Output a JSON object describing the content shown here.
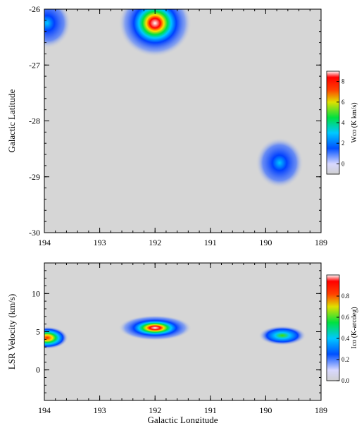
{
  "chart_data": [
    {
      "type": "heatmap",
      "title": "",
      "xlabel": "",
      "ylabel": "Galactic Latitude",
      "x_ticks": [
        "194",
        "193",
        "192",
        "191",
        "190",
        "189"
      ],
      "y_ticks": [
        "-26",
        "-27",
        "-28",
        "-29",
        "-30"
      ],
      "xlim": [
        194,
        189
      ],
      "ylim": [
        -30,
        -26
      ],
      "colorbar": {
        "label": "Wco (K km/s)",
        "ticks": [
          "0",
          "2",
          "4",
          "6",
          "8"
        ],
        "range": [
          -1,
          9
        ]
      },
      "features": [
        {
          "l": 193.95,
          "b": -26.25,
          "peak": 3.0
        },
        {
          "l": 192.0,
          "b": -26.25,
          "peak": 7.5
        },
        {
          "l": 189.75,
          "b": -28.75,
          "peak": 3.0
        }
      ]
    },
    {
      "type": "heatmap",
      "title": "",
      "xlabel": "Galactic Longitude",
      "ylabel": "LSR Velocity (km/s)",
      "x_ticks": [
        "194",
        "193",
        "192",
        "191",
        "190",
        "189"
      ],
      "y_ticks": [
        "10",
        "5",
        "0"
      ],
      "xlim": [
        194,
        189
      ],
      "ylim": [
        -4,
        14
      ],
      "colorbar": {
        "label": "Ico (K-arcdeg)",
        "ticks": [
          "0.0",
          "0.2",
          "0.4",
          "0.6",
          "0.8"
        ],
        "range": [
          0,
          1.0
        ]
      },
      "features": [
        {
          "l": 193.95,
          "v": 4.2,
          "peak": 0.75
        },
        {
          "l": 192.0,
          "v": 5.5,
          "peak": 0.95
        },
        {
          "l": 189.7,
          "v": 4.5,
          "peak": 0.45
        }
      ]
    }
  ]
}
